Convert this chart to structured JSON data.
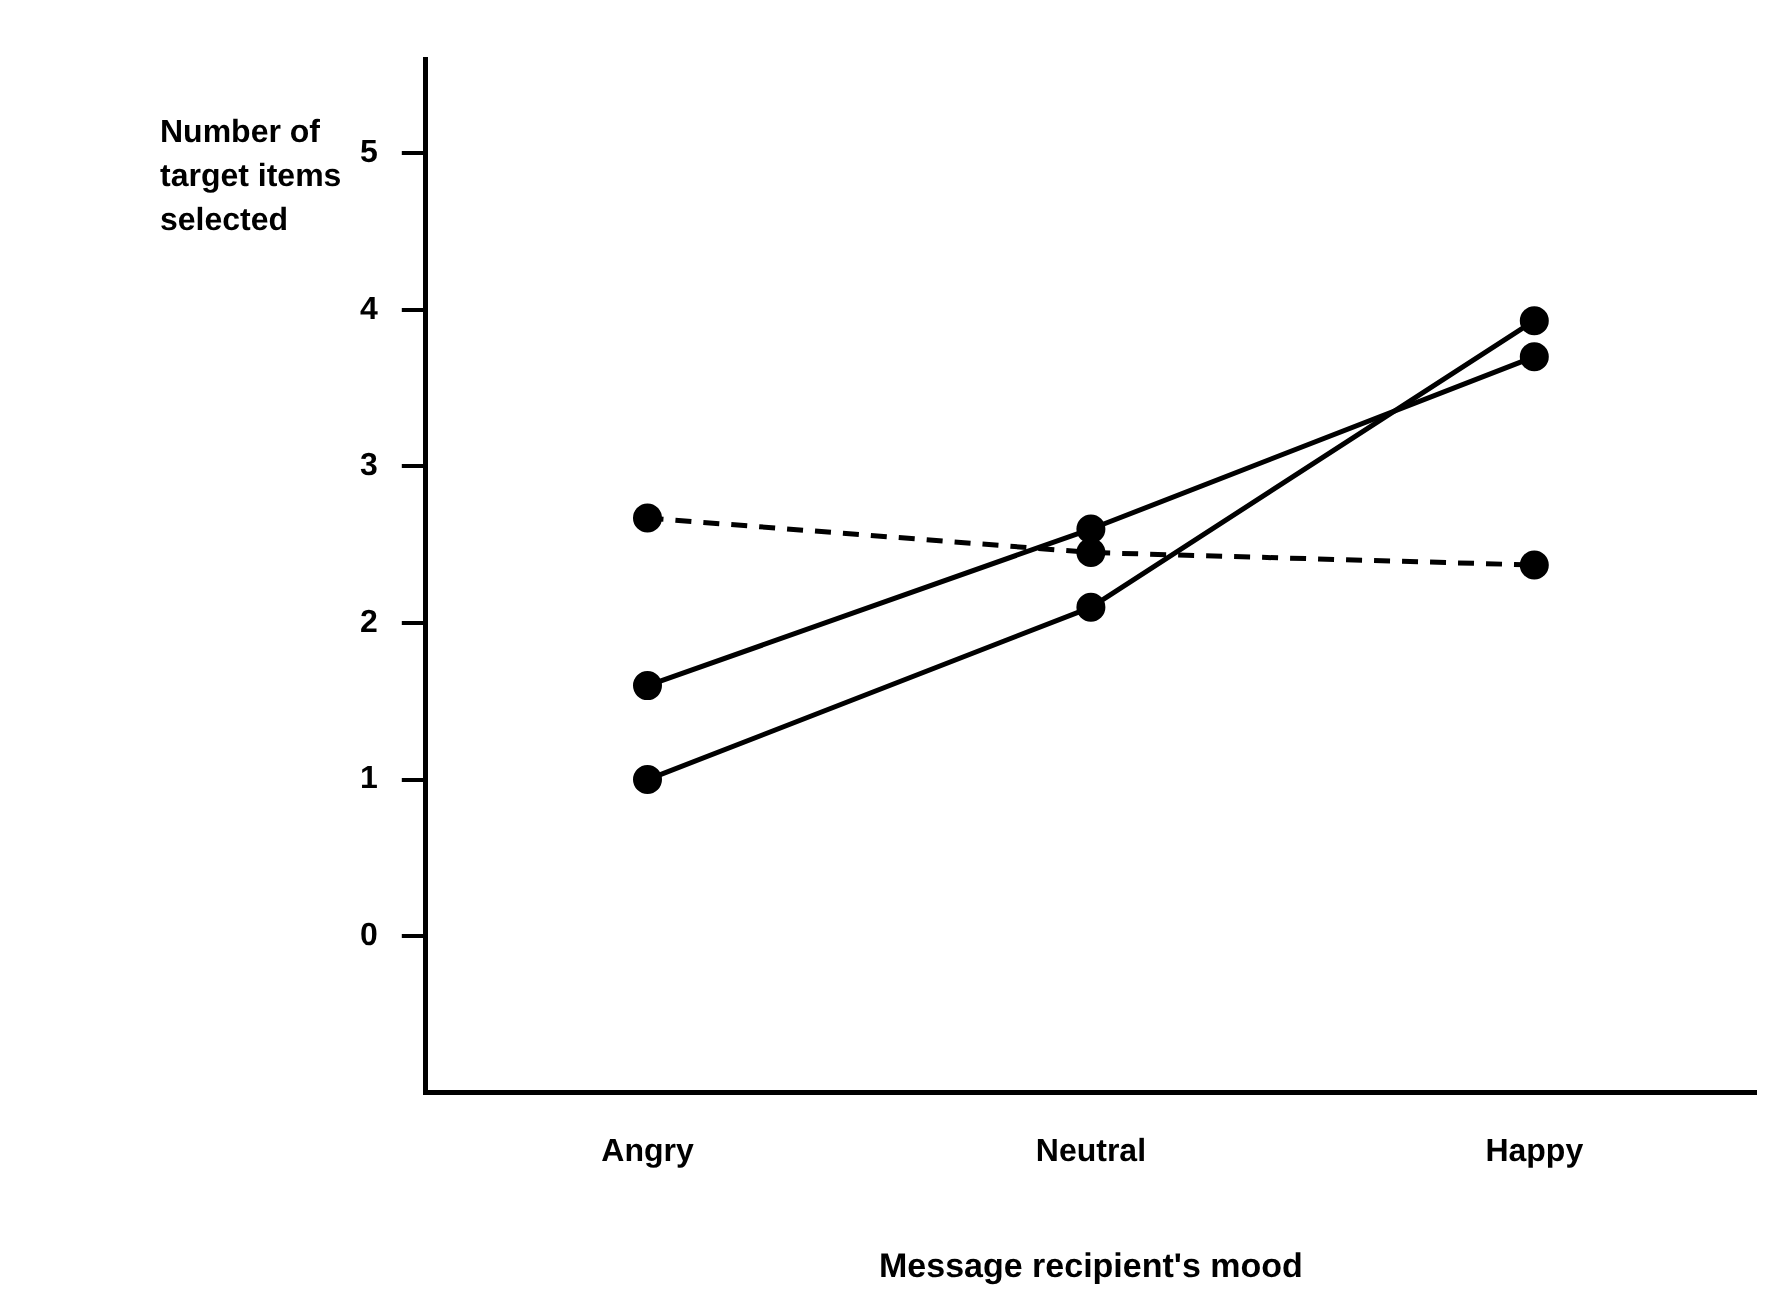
{
  "chart_data": {
    "type": "line",
    "xlabel": "Message recipient's mood",
    "ylabel": "Number of target items selected",
    "categories": [
      "Angry",
      "Neutral",
      "Happy"
    ],
    "ylim": [
      -1,
      5.6
    ],
    "yticks": [
      0,
      1,
      2,
      3,
      4,
      5
    ],
    "grid": false,
    "legend": false,
    "marker": "circle",
    "series": [
      {
        "color": "#000000",
        "values": [
          1.6,
          2.6,
          3.7
        ],
        "line_style": "solid"
      },
      {
        "color": "#000000",
        "values": [
          1.0,
          2.1,
          3.93
        ],
        "line_style": "solid"
      },
      {
        "color": "#000000",
        "values": [
          2.67,
          2.45,
          2.37
        ],
        "line_style": "dashed"
      }
    ]
  }
}
